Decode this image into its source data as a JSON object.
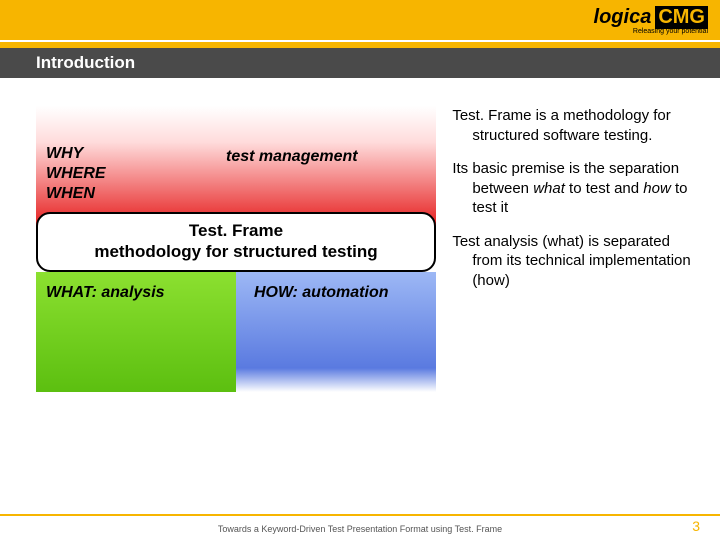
{
  "logo": {
    "part1": "logica",
    "part2": "CMG",
    "tagline": "Releasing your potential"
  },
  "title": "Introduction",
  "diagram": {
    "why_lines": "WHY\nWHERE\nWHEN",
    "test_mgmt": "test management",
    "methodology_line1": "Test. Frame",
    "methodology_line2": "methodology for structured testing",
    "what_label": "WHAT: analysis",
    "how_label": "HOW: automation",
    "colors": {
      "red_gradient_top": "#ffffff",
      "red_gradient_bottom": "#e62020",
      "green_gradient_top": "#8ce030",
      "green_gradient_bottom": "#5cbf10",
      "blue_gradient_top": "#9db8f5",
      "blue_gradient_bottom": "#5a7ae0"
    }
  },
  "bullets": {
    "p1": "Test. Frame is a methodology for structured software testing.",
    "p2a": "Its basic premise is the separation between ",
    "p2b": "what",
    "p2c": " to test and ",
    "p2d": "how",
    "p2e": " to test it",
    "p3": "Test analysis (what) is separated from its technical implementation (how)"
  },
  "footer": {
    "text": "Towards a Keyword-Driven Test Presentation Format using Test. Frame",
    "page": "3"
  },
  "theme": {
    "accent": "#f7b500",
    "titlebar_bg": "#4a4a4a"
  }
}
